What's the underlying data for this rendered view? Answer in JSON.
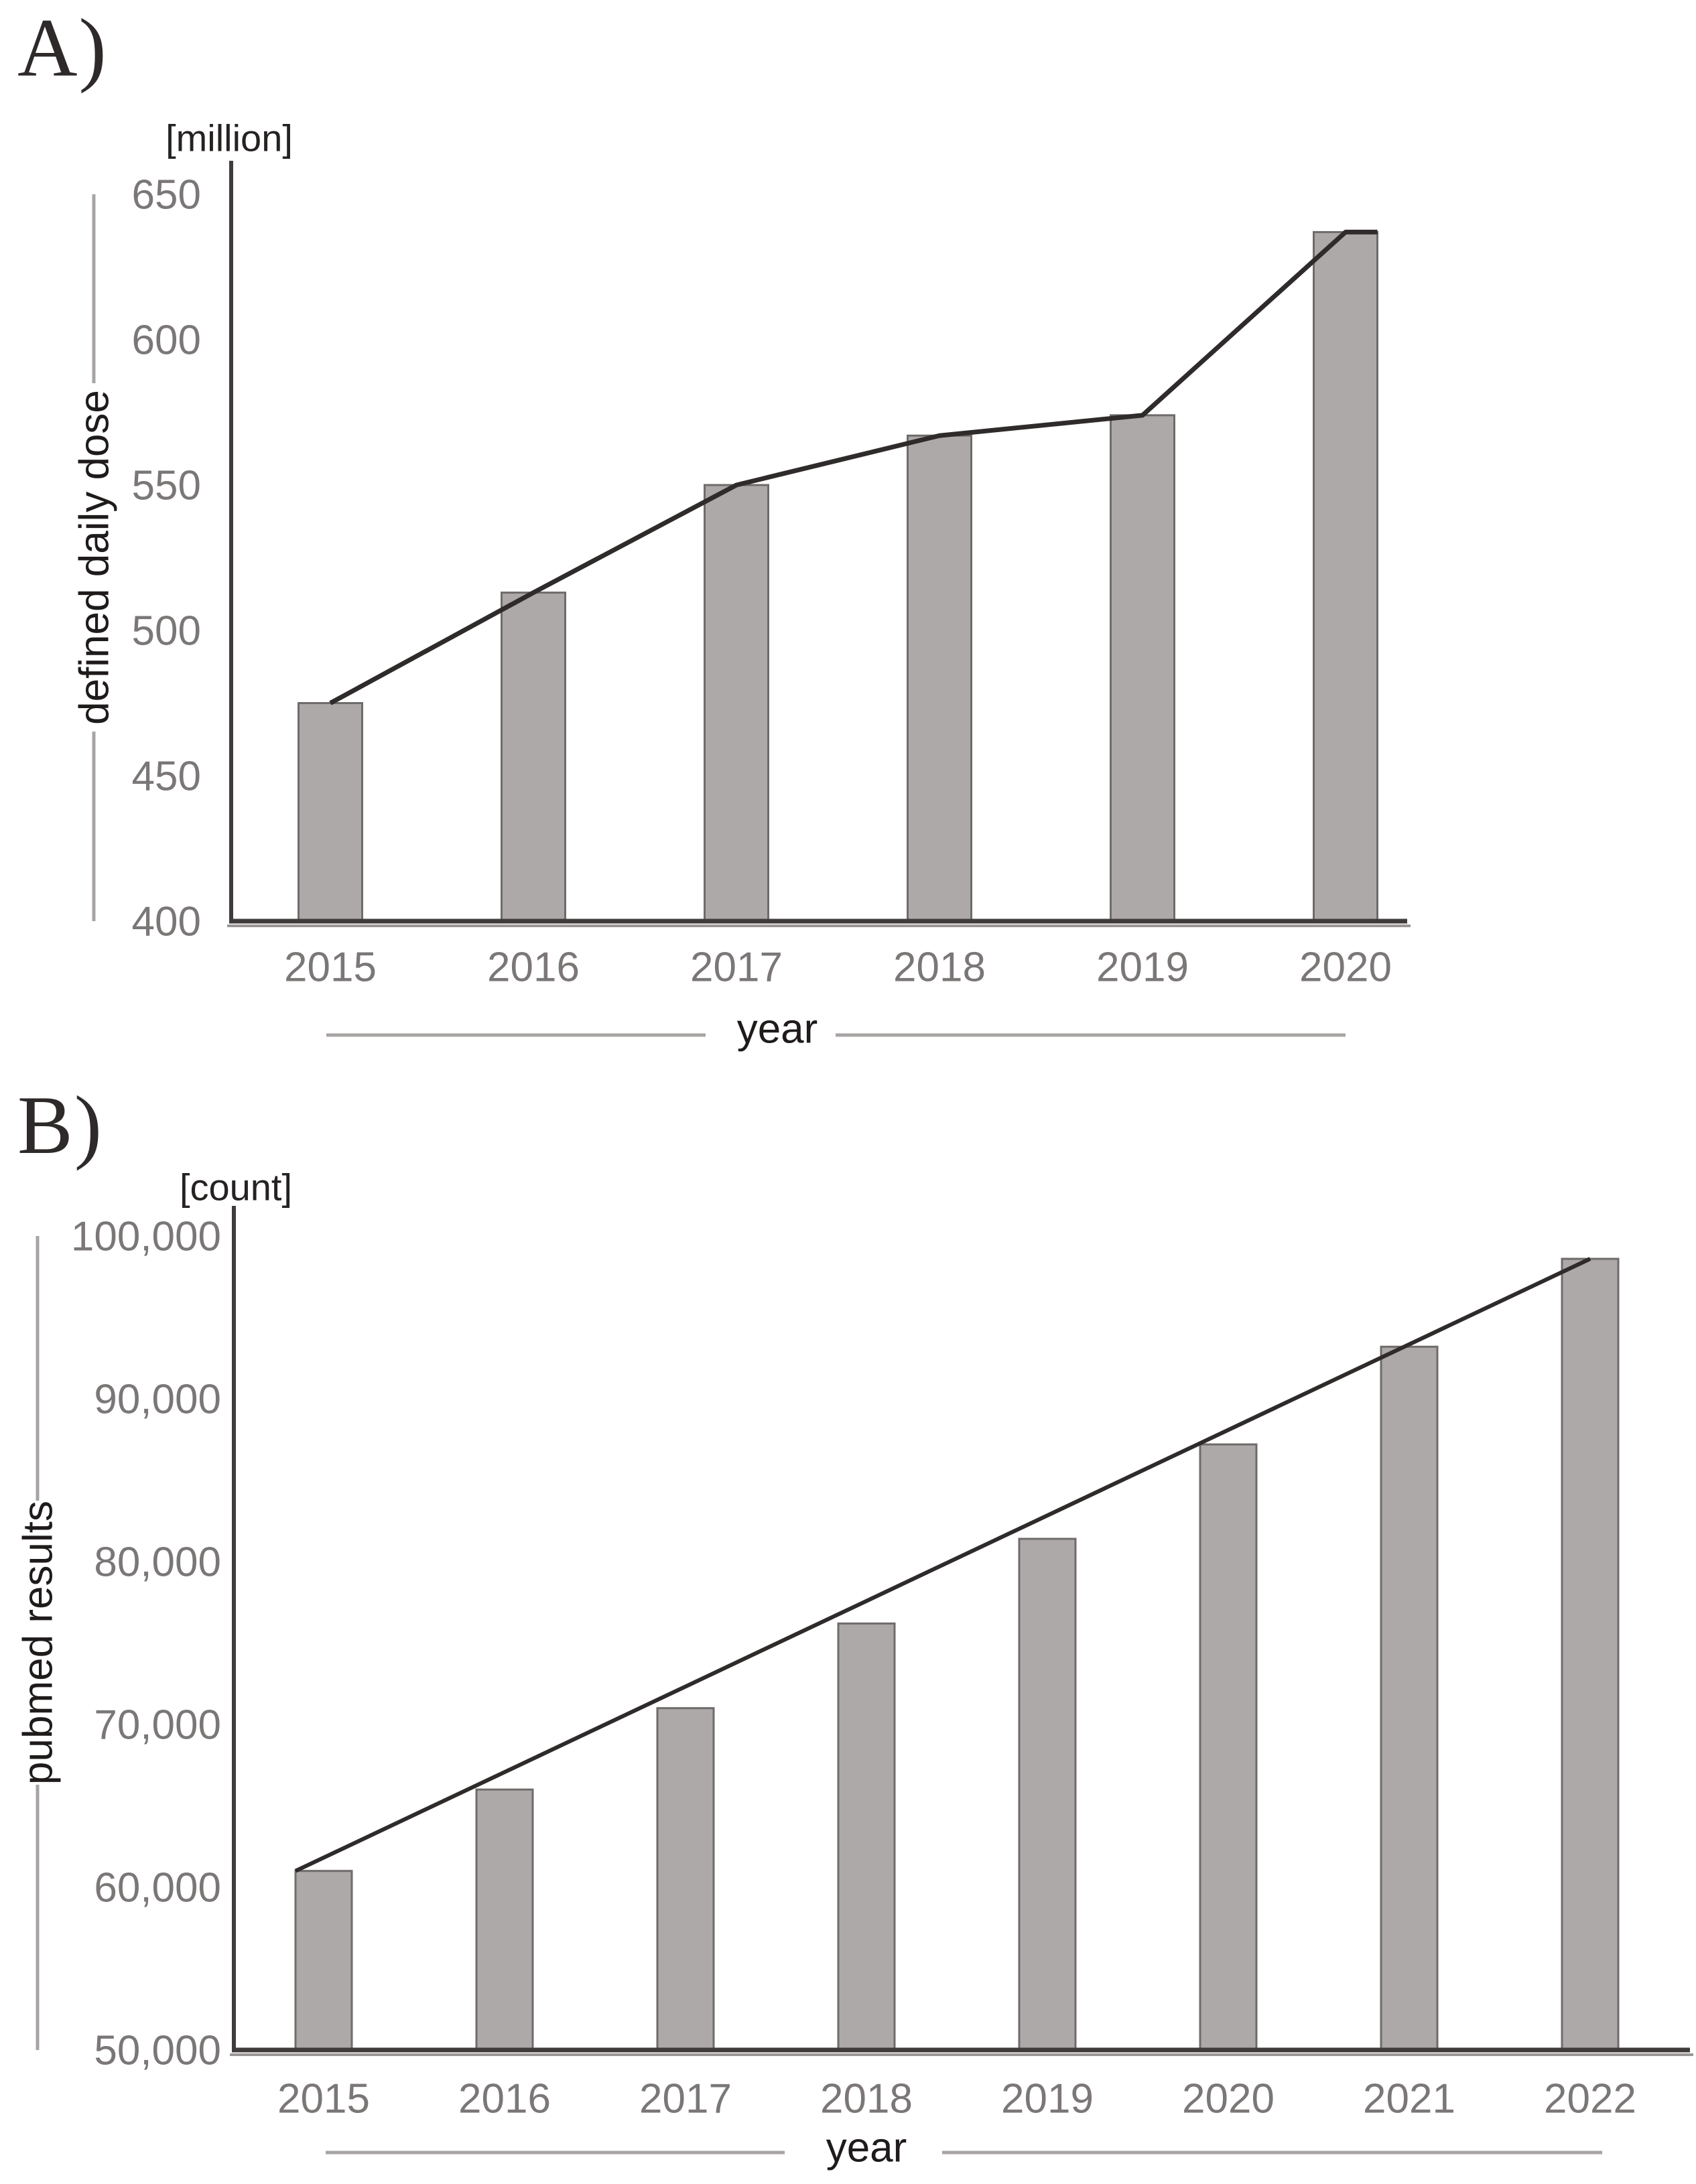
{
  "figure": {
    "panels": [
      {
        "label": "A)"
      },
      {
        "label": "B)"
      }
    ]
  },
  "style": {
    "bar_fill": "#ada9a9",
    "bar_stroke": "#6f6b6b",
    "trend_line": "#2f2b2b",
    "axis": "#403c3c",
    "axis_shadow": "#9a9696",
    "decor": "#a8a4a4",
    "tick_text": "#7b7777",
    "title_text": "#1f1b1b",
    "background": "#ffffff"
  },
  "chart_data": [
    {
      "type": "bar",
      "panel": "A",
      "unit_label": "[million]",
      "ylabel": "defined daily dose",
      "xlabel": "year",
      "categories": [
        "2015",
        "2016",
        "2017",
        "2018",
        "2019",
        "2020"
      ],
      "values": [
        475,
        513,
        550,
        567,
        574,
        637
      ],
      "ylim": [
        400,
        650
      ],
      "ytick_values": [
        400,
        450,
        500,
        550,
        600,
        650
      ],
      "ytick_labels": [
        "400",
        "450",
        "500",
        "550",
        "600",
        "650"
      ],
      "grid": false,
      "legend": "none",
      "trendline": {
        "type": "through-points",
        "note": "dark line passing through bar tops, steep rise to 2020"
      }
    },
    {
      "type": "bar",
      "panel": "B",
      "unit_label": "[count]",
      "ylabel": "pubmed results",
      "xlabel": "year",
      "categories": [
        "2015",
        "2016",
        "2017",
        "2018",
        "2019",
        "2020",
        "2021",
        "2022"
      ],
      "values": [
        61000,
        66000,
        71000,
        76200,
        81400,
        87200,
        93200,
        98600
      ],
      "ylim": [
        50000,
        100000
      ],
      "ytick_values": [
        50000,
        60000,
        70000,
        80000,
        90000,
        100000
      ],
      "ytick_labels": [
        "50,000",
        "60,000",
        "70,000",
        "80,000",
        "90,000",
        "100,000"
      ],
      "grid": false,
      "legend": "none",
      "trendline": {
        "type": "linear-endpoints",
        "note": "straight line from 2015 bar top to 2022 bar top"
      }
    }
  ]
}
